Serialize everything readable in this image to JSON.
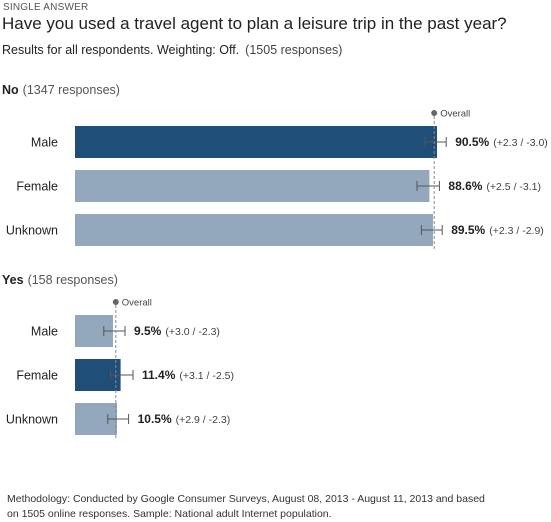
{
  "header": {
    "eyebrow": "SINGLE ANSWER",
    "question": "Have you used a travel agent to plan a leisure trip in the past year?",
    "results_text": "Results for all respondents. Weighting: Off.",
    "responses_text": "(1505 responses)"
  },
  "footer": {
    "line1": "Methodology: Conducted by Google Consumer Surveys, August 08, 2013 - August 11, 2013 and based",
    "line2": "on 1505 online responses. Sample: National adult Internet population."
  },
  "colors": {
    "highlight": "#1f4e79",
    "normal": "#93a7bd",
    "error_bar": "#555555",
    "overall_line": "#888888"
  },
  "chart_data": [
    {
      "type": "bar",
      "section": "No",
      "count_label": "(1347 responses)",
      "overall_label": "Overall",
      "overall_value": 89.8,
      "categories": [
        "Male",
        "Female",
        "Unknown"
      ],
      "values": [
        90.5,
        88.6,
        89.5
      ],
      "value_labels": [
        "90.5%",
        "88.6%",
        "89.5%"
      ],
      "error_labels": [
        "(+2.3 / -3.0)",
        "(+2.5 / -3.1)",
        "(+2.3 / -2.9)"
      ],
      "error_plus": [
        2.3,
        2.5,
        2.3
      ],
      "error_minus": [
        3.0,
        3.1,
        2.9
      ],
      "highlighted": [
        true,
        false,
        false
      ],
      "xlim": [
        0,
        100
      ]
    },
    {
      "type": "bar",
      "section": "Yes",
      "count_label": "(158 responses)",
      "overall_label": "Overall",
      "overall_value": 10.2,
      "categories": [
        "Male",
        "Female",
        "Unknown"
      ],
      "values": [
        9.5,
        11.4,
        10.5
      ],
      "value_labels": [
        "9.5%",
        "11.4%",
        "10.5%"
      ],
      "error_labels": [
        "(+3.0 / -2.3)",
        "(+3.1 / -2.5)",
        "(+2.9 / -2.3)"
      ],
      "error_plus": [
        3.0,
        3.1,
        2.9
      ],
      "error_minus": [
        2.3,
        2.5,
        2.3
      ],
      "highlighted": [
        false,
        true,
        false
      ],
      "xlim": [
        0,
        100
      ]
    }
  ]
}
